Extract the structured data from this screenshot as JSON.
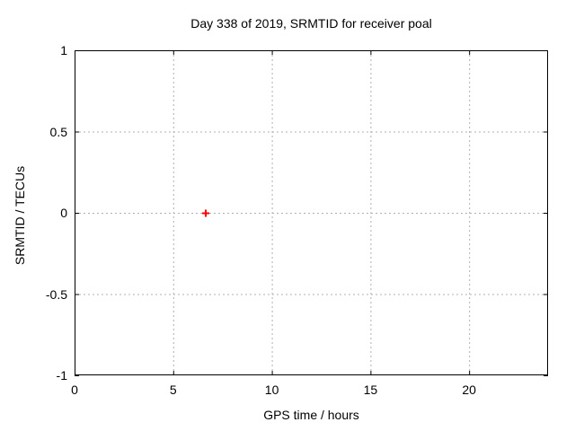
{
  "figure": {
    "title": "Day 338 of 2019, SRMTID for receiver poal",
    "xlabel": "GPS time / hours",
    "ylabel": "SRMTID / TECUs"
  },
  "chart_data": {
    "type": "scatter",
    "title": "Day 338 of 2019, SRMTID for receiver poal",
    "xlabel": "GPS time / hours",
    "ylabel": "SRMTID / TECUs",
    "xlim": [
      0,
      24
    ],
    "ylim": [
      -1,
      1
    ],
    "xticks": [
      0,
      5,
      10,
      15,
      20
    ],
    "xtick_labels": [
      "0",
      "5",
      "10",
      "15",
      "20"
    ],
    "yticks": [
      1,
      0.5,
      0,
      -0.5,
      -1
    ],
    "ytick_labels": [
      "1",
      "0.5",
      "0",
      "-0.5",
      "-1"
    ],
    "grid": true,
    "legend": "none",
    "series": [
      {
        "name": "SRMTID",
        "marker": "plus",
        "color": "#ff0000",
        "points": [
          {
            "x": 6.65,
            "y": 0
          }
        ]
      }
    ],
    "colors": {
      "grid": "#b0b0b0",
      "border": "#000000",
      "text": "#000000",
      "background": "#ffffff"
    }
  }
}
